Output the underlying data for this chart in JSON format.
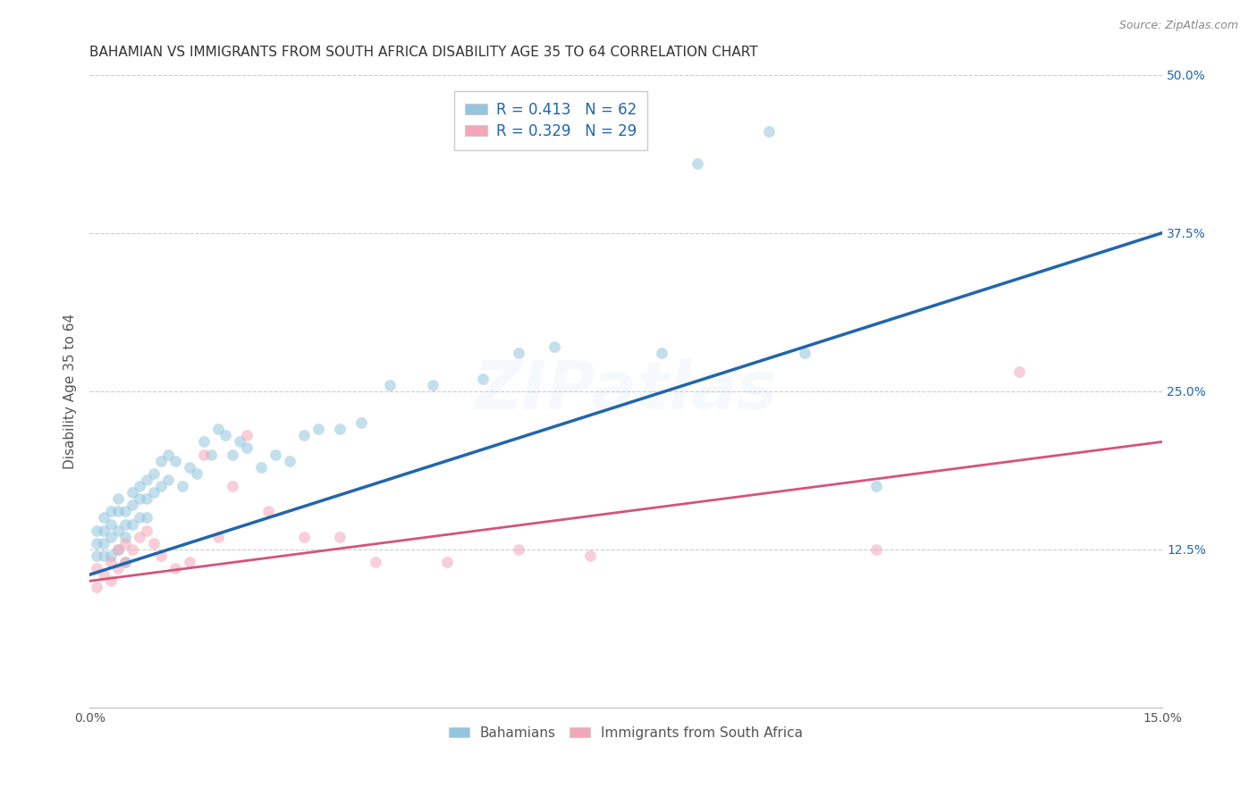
{
  "title": "BAHAMIAN VS IMMIGRANTS FROM SOUTH AFRICA DISABILITY AGE 35 TO 64 CORRELATION CHART",
  "source": "Source: ZipAtlas.com",
  "ylabel": "Disability Age 35 to 64",
  "x_min": 0.0,
  "x_max": 0.15,
  "y_min": 0.0,
  "y_max": 0.5,
  "x_ticks": [
    0.0,
    0.03,
    0.06,
    0.09,
    0.12,
    0.15
  ],
  "x_tick_labels": [
    "0.0%",
    "",
    "",
    "",
    "",
    "15.0%"
  ],
  "y_ticks_right": [
    0.125,
    0.25,
    0.375,
    0.5
  ],
  "y_tick_labels_right": [
    "12.5%",
    "25.0%",
    "37.5%",
    "50.0%"
  ],
  "legend1_R": "0.413",
  "legend1_N": "62",
  "legend2_R": "0.329",
  "legend2_N": "29",
  "blue_color": "#92c5de",
  "pink_color": "#f4a6b8",
  "line_blue": "#2166ac",
  "line_pink": "#d6537a",
  "legend_label1": "Bahamians",
  "legend_label2": "Immigrants from South Africa",
  "blue_scatter_x": [
    0.001,
    0.001,
    0.001,
    0.002,
    0.002,
    0.002,
    0.002,
    0.003,
    0.003,
    0.003,
    0.003,
    0.004,
    0.004,
    0.004,
    0.004,
    0.005,
    0.005,
    0.005,
    0.005,
    0.006,
    0.006,
    0.006,
    0.007,
    0.007,
    0.007,
    0.008,
    0.008,
    0.008,
    0.009,
    0.009,
    0.01,
    0.01,
    0.011,
    0.011,
    0.012,
    0.013,
    0.014,
    0.015,
    0.016,
    0.017,
    0.018,
    0.019,
    0.02,
    0.021,
    0.022,
    0.024,
    0.026,
    0.028,
    0.03,
    0.032,
    0.035,
    0.038,
    0.042,
    0.048,
    0.055,
    0.06,
    0.065,
    0.08,
    0.085,
    0.095,
    0.1,
    0.11
  ],
  "blue_scatter_y": [
    0.14,
    0.13,
    0.12,
    0.15,
    0.14,
    0.13,
    0.12,
    0.155,
    0.145,
    0.135,
    0.12,
    0.165,
    0.155,
    0.14,
    0.125,
    0.155,
    0.145,
    0.135,
    0.115,
    0.17,
    0.16,
    0.145,
    0.175,
    0.165,
    0.15,
    0.18,
    0.165,
    0.15,
    0.185,
    0.17,
    0.195,
    0.175,
    0.2,
    0.18,
    0.195,
    0.175,
    0.19,
    0.185,
    0.21,
    0.2,
    0.22,
    0.215,
    0.2,
    0.21,
    0.205,
    0.19,
    0.2,
    0.195,
    0.215,
    0.22,
    0.22,
    0.225,
    0.255,
    0.255,
    0.26,
    0.28,
    0.285,
    0.28,
    0.43,
    0.455,
    0.28,
    0.175
  ],
  "pink_scatter_x": [
    0.001,
    0.001,
    0.002,
    0.003,
    0.003,
    0.004,
    0.004,
    0.005,
    0.005,
    0.006,
    0.007,
    0.008,
    0.009,
    0.01,
    0.012,
    0.014,
    0.016,
    0.018,
    0.02,
    0.022,
    0.025,
    0.03,
    0.035,
    0.04,
    0.05,
    0.06,
    0.07,
    0.11,
    0.13
  ],
  "pink_scatter_y": [
    0.11,
    0.095,
    0.105,
    0.115,
    0.1,
    0.125,
    0.11,
    0.13,
    0.115,
    0.125,
    0.135,
    0.14,
    0.13,
    0.12,
    0.11,
    0.115,
    0.2,
    0.135,
    0.175,
    0.215,
    0.155,
    0.135,
    0.135,
    0.115,
    0.115,
    0.125,
    0.12,
    0.125,
    0.265
  ],
  "blue_line_x0": 0.0,
  "blue_line_y0": 0.105,
  "blue_line_x1": 0.15,
  "blue_line_y1": 0.375,
  "pink_line_x0": 0.0,
  "pink_line_y0": 0.1,
  "pink_line_x1": 0.15,
  "pink_line_y1": 0.21,
  "title_fontsize": 11,
  "axis_label_fontsize": 11,
  "tick_fontsize": 10,
  "legend_fontsize": 12,
  "marker_size": 85,
  "marker_alpha": 0.55,
  "grid_color": "#cccccc",
  "grid_style": "--",
  "background_color": "#ffffff",
  "watermark_text": "ZIPatlas",
  "watermark_alpha": 0.1
}
